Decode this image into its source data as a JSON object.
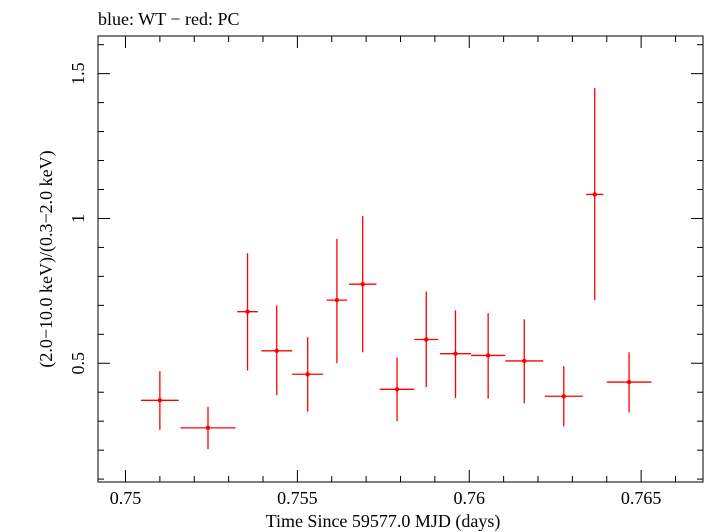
{
  "chart_data": {
    "type": "scatter",
    "title": "blue: WT − red: PC",
    "xlabel": "Time Since 59577.0 MJD (days)",
    "ylabel": "(2.0−10.0 keV)/(0.3−2.0 keV)",
    "xlim": [
      0.7492,
      0.7668
    ],
    "ylim": [
      0.09,
      1.63
    ],
    "xticks": [
      {
        "value": 0.75,
        "label": "0.75"
      },
      {
        "value": 0.755,
        "label": "0.755"
      },
      {
        "value": 0.76,
        "label": "0.76"
      },
      {
        "value": 0.765,
        "label": "0.765"
      }
    ],
    "yticks": [
      {
        "value": 0.5,
        "label": "0.5"
      },
      {
        "value": 1.0,
        "label": "1"
      },
      {
        "value": 1.5,
        "label": "1.5"
      }
    ],
    "grid": false,
    "legend": "none",
    "series": [
      {
        "color": "#ff0000",
        "points": [
          {
            "x": 0.751,
            "xerr": 0.00055,
            "y": 0.372,
            "ylo": 0.27,
            "yhi": 0.473
          },
          {
            "x": 0.7524,
            "xerr": 0.0008,
            "y": 0.277,
            "ylo": 0.203,
            "yhi": 0.35
          },
          {
            "x": 0.75355,
            "xerr": 0.0003,
            "y": 0.678,
            "ylo": 0.475,
            "yhi": 0.88
          },
          {
            "x": 0.7544,
            "xerr": 0.00045,
            "y": 0.543,
            "ylo": 0.39,
            "yhi": 0.7
          },
          {
            "x": 0.7553,
            "xerr": 0.00045,
            "y": 0.462,
            "ylo": 0.333,
            "yhi": 0.59
          },
          {
            "x": 0.75615,
            "xerr": 0.0003,
            "y": 0.718,
            "ylo": 0.5,
            "yhi": 0.93
          },
          {
            "x": 0.7569,
            "xerr": 0.0004,
            "y": 0.773,
            "ylo": 0.538,
            "yhi": 1.008
          },
          {
            "x": 0.7579,
            "xerr": 0.0005,
            "y": 0.41,
            "ylo": 0.3,
            "yhi": 0.52
          },
          {
            "x": 0.75875,
            "xerr": 0.00035,
            "y": 0.582,
            "ylo": 0.418,
            "yhi": 0.748
          },
          {
            "x": 0.7596,
            "xerr": 0.00045,
            "y": 0.533,
            "ylo": 0.38,
            "yhi": 0.683
          },
          {
            "x": 0.76055,
            "xerr": 0.0005,
            "y": 0.527,
            "ylo": 0.378,
            "yhi": 0.673
          },
          {
            "x": 0.7616,
            "xerr": 0.00055,
            "y": 0.508,
            "ylo": 0.362,
            "yhi": 0.652
          },
          {
            "x": 0.76275,
            "xerr": 0.00055,
            "y": 0.386,
            "ylo": 0.282,
            "yhi": 0.49
          },
          {
            "x": 0.76365,
            "xerr": 0.00025,
            "y": 1.083,
            "ylo": 0.718,
            "yhi": 1.45
          },
          {
            "x": 0.76465,
            "xerr": 0.00065,
            "y": 0.435,
            "ylo": 0.33,
            "yhi": 0.538
          }
        ]
      }
    ]
  }
}
